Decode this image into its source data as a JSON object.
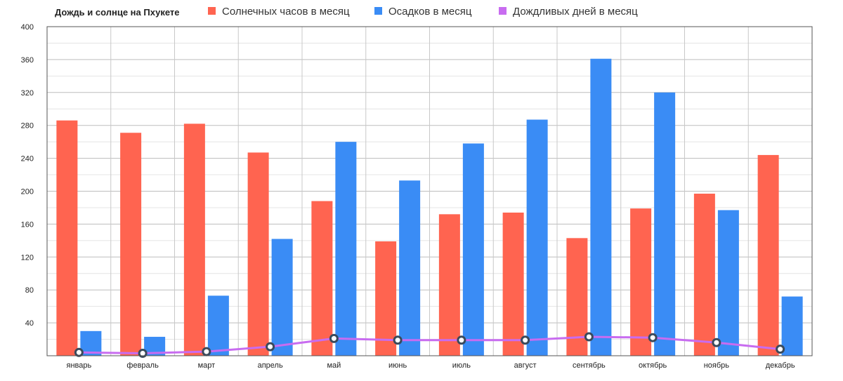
{
  "chart_data": {
    "type": "bar",
    "title": "Дождь и солнце на Пхукете",
    "categories": [
      "январь",
      "февраль",
      "март",
      "апрель",
      "май",
      "июнь",
      "июль",
      "август",
      "сентябрь",
      "октябрь",
      "ноябрь",
      "декабрь"
    ],
    "ylim": [
      0,
      400
    ],
    "yticks": [
      40,
      80,
      120,
      160,
      200,
      240,
      280,
      320,
      360,
      400
    ],
    "grid": true,
    "legend_position": "top",
    "series": [
      {
        "name": "Солнечных часов в месяц",
        "type": "bar",
        "color": "#ff6450",
        "values": [
          286,
          271,
          282,
          247,
          188,
          139,
          172,
          174,
          143,
          179,
          197,
          244
        ]
      },
      {
        "name": "Осадков в месяц",
        "type": "bar",
        "color": "#3a8cf5",
        "values": [
          30,
          23,
          73,
          142,
          260,
          213,
          258,
          287,
          361,
          320,
          177,
          72
        ]
      },
      {
        "name": "Дождливых дней в месяц",
        "type": "line",
        "color": "#c86cf0",
        "values": [
          4,
          3,
          5,
          11,
          21,
          19,
          19,
          19,
          23,
          22,
          16,
          8
        ]
      }
    ]
  }
}
